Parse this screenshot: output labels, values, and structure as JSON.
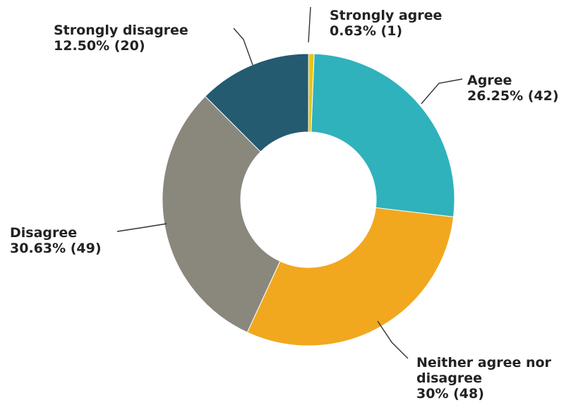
{
  "chart_data": {
    "type": "pie",
    "variant": "donut",
    "title": "",
    "slices": [
      {
        "label": "Strongly agree",
        "percent": 0.63,
        "percent_label": "0.63%",
        "count": 1,
        "color": "#e8c51a"
      },
      {
        "label": "Agree",
        "percent": 26.25,
        "percent_label": "26.25%",
        "count": 42,
        "color": "#2fb2bc"
      },
      {
        "label": "Neither agree nor disagree",
        "percent": 30.0,
        "percent_label": "30%",
        "count": 48,
        "color": "#f1a81f"
      },
      {
        "label": "Disagree",
        "percent": 30.63,
        "percent_label": "30.63%",
        "count": 49,
        "color": "#8a877d"
      },
      {
        "label": "Strongly disagree",
        "percent": 12.5,
        "percent_label": "12.50%",
        "count": 20,
        "color": "#245b70"
      }
    ],
    "legend": "none",
    "labels_outside": true
  }
}
